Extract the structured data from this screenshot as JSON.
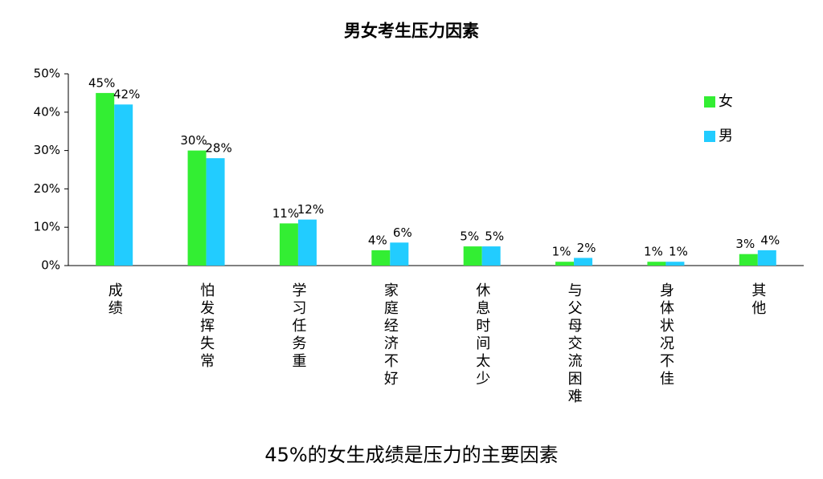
{
  "chart_data": {
    "type": "bar",
    "title": "男女考生压力因素",
    "categories": [
      "成绩",
      "怕发挥失常",
      "学习任务重",
      "家庭经济不好",
      "休息时间太少",
      "与父母交流困难",
      "身体状况不佳",
      "其他"
    ],
    "series": [
      {
        "name": "女",
        "color": "#33ee33",
        "values": [
          45,
          30,
          11,
          4,
          5,
          1,
          1,
          3
        ],
        "value_labels": [
          "45%",
          "30%",
          "11%",
          "4%",
          "5%",
          "1%",
          "1%",
          "3%"
        ]
      },
      {
        "name": "男",
        "color": "#22ccff",
        "values": [
          42,
          28,
          12,
          6,
          5,
          2,
          1,
          4
        ],
        "value_labels": [
          "42%",
          "28%",
          "12%",
          "6%",
          "5%",
          "2%",
          "1%",
          "4%"
        ]
      }
    ],
    "ylim": [
      0,
      50
    ],
    "yticks": [
      {
        "value": 0,
        "label": "0%"
      },
      {
        "value": 10,
        "label": "10%"
      },
      {
        "value": 20,
        "label": "20%"
      },
      {
        "value": 30,
        "label": "30%"
      },
      {
        "value": 40,
        "label": "40%"
      },
      {
        "value": 50,
        "label": "50%"
      }
    ],
    "legend": "upper right"
  },
  "caption": "45%的女生成绩是压力的主要因素"
}
